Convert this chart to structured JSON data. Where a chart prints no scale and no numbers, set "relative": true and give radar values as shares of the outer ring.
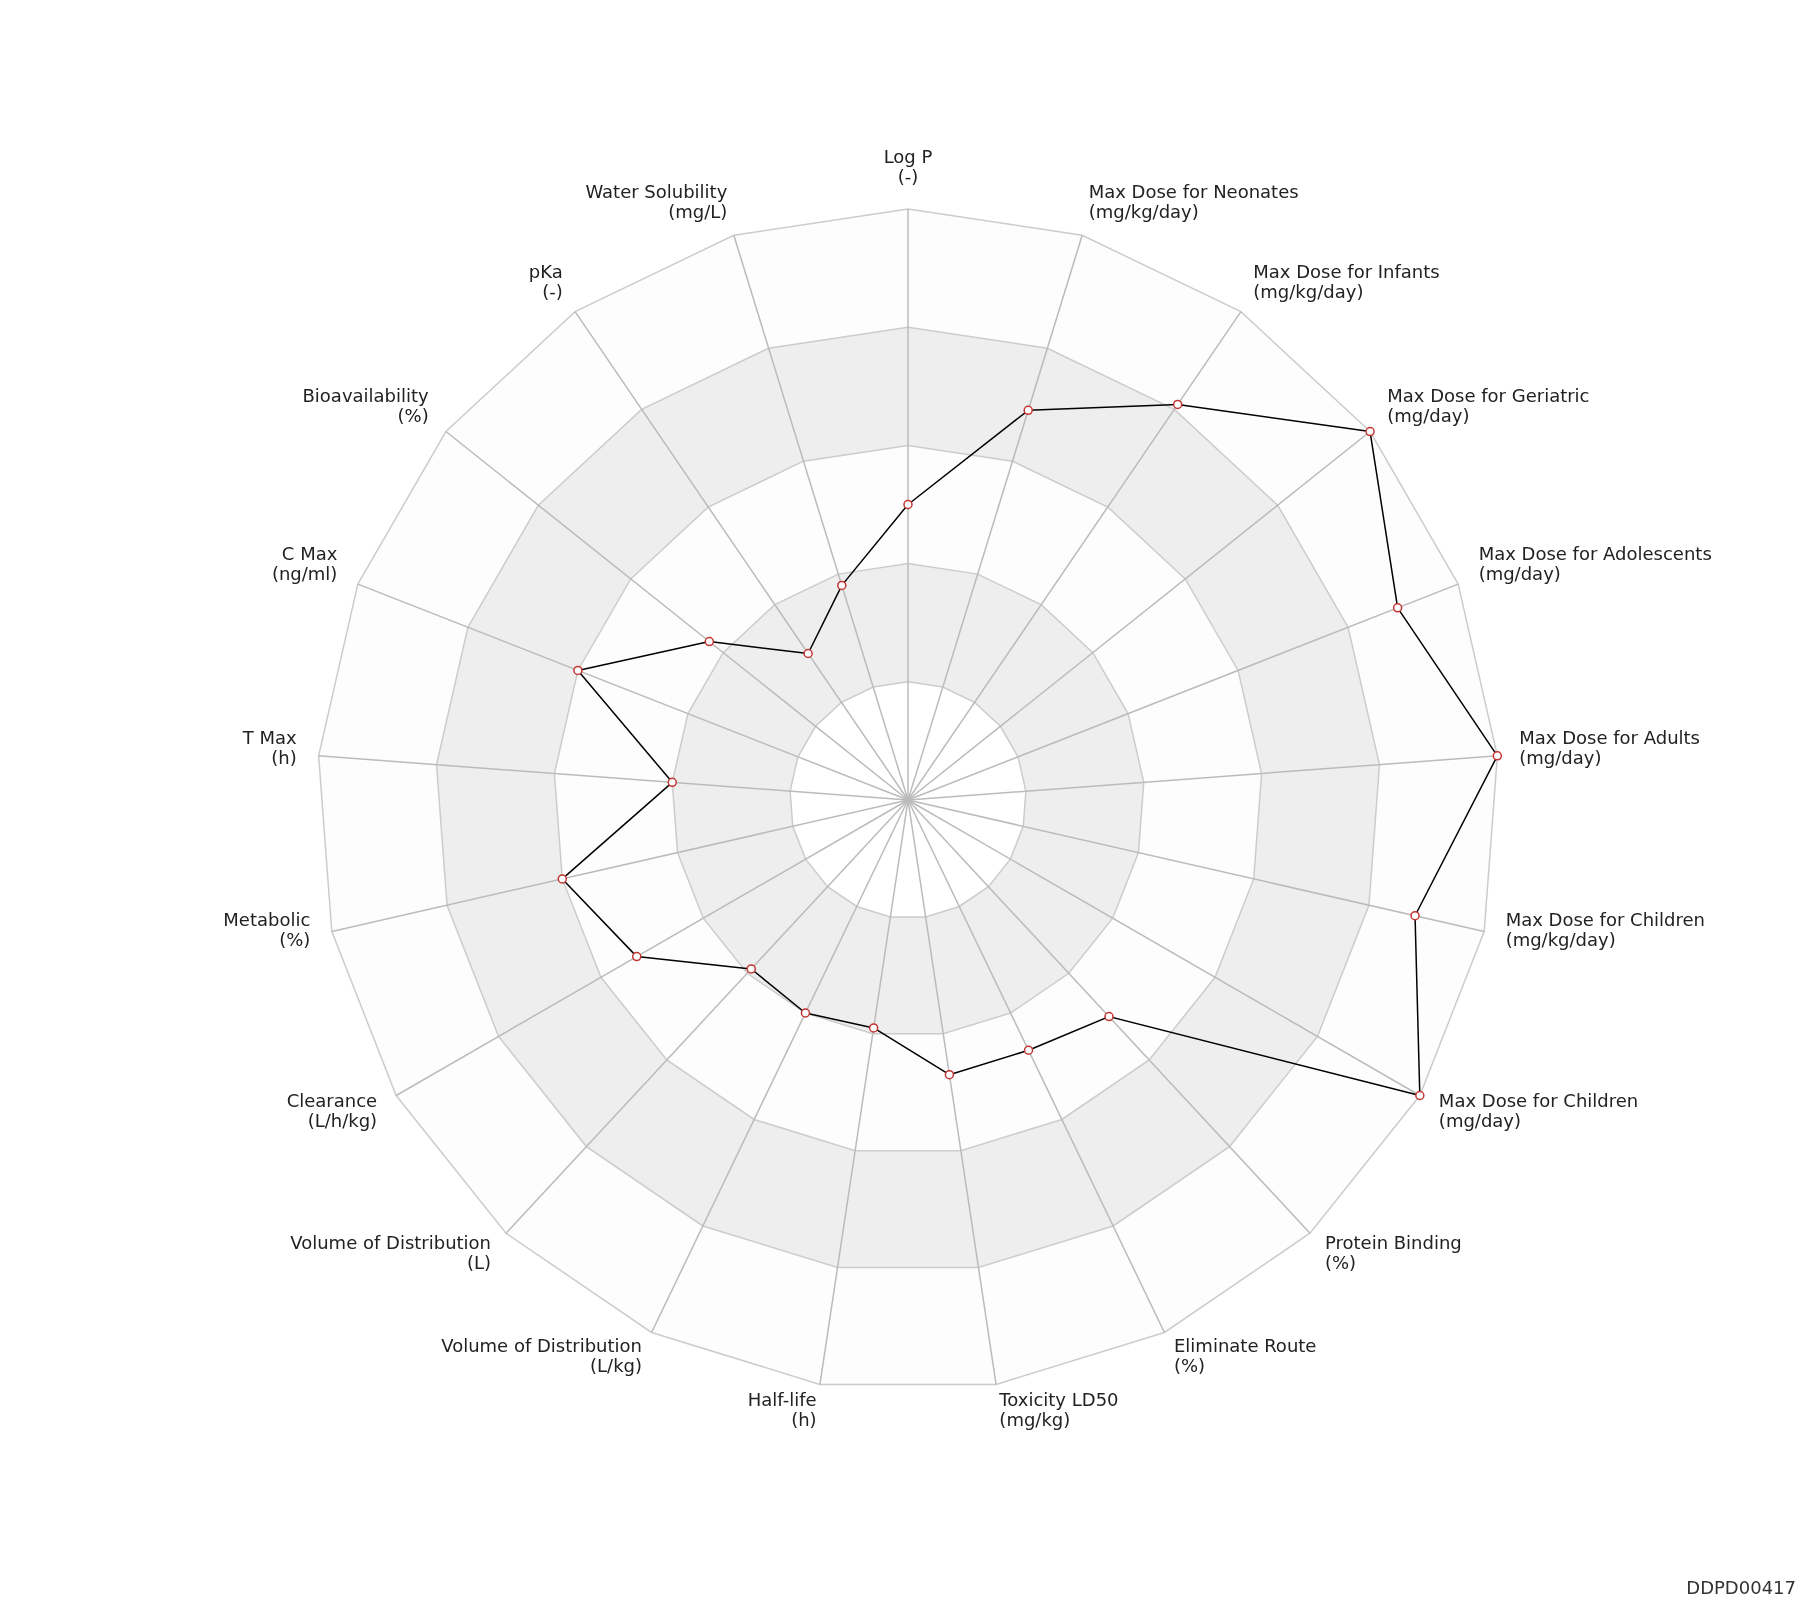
{
  "chart_data": {
    "type": "radar",
    "relative": true,
    "marker": "circle",
    "categories": [
      "Log P\n(-)",
      "Max Dose for Neonates\n(mg/kg/day)",
      "Max Dose for Infants\n(mg/kg/day)",
      "Max Dose for Geriatric\n(mg/day)",
      "Max Dose for Adolescents\n(mg/day)",
      "Max Dose for Adults\n(mg/day)",
      "Max Dose for Children\n(mg/kg/day)",
      "Max Dose for Children\n(mg/day)",
      "Protein Binding\n(%)",
      "Eliminate Route\n(%)",
      "Toxicity LD50\n(mg/kg)",
      "Half-life\n(h)",
      "Volume of Distribution\n(L/kg)",
      "Volume of Distribution\n(L)",
      "Clearance\n(L/h/kg)",
      "Metabolic\n(%)",
      "T Max\n(h)",
      "C Max\n(ng/ml)",
      "Bioavailability\n(%)",
      "pKa\n(-)",
      "Water Solubility\n(mg/L)"
    ],
    "series": [
      {
        "color": "#000000",
        "values": [
          0.5,
          0.69,
          0.81,
          1.0,
          0.89,
          1.0,
          0.88,
          1.0,
          0.5,
          0.47,
          0.47,
          0.39,
          0.4,
          0.39,
          0.53,
          0.6,
          0.4,
          0.6,
          0.43,
          0.3,
          0.38
        ]
      }
    ],
    "annotations": [
      "DDPD00417"
    ]
  }
}
